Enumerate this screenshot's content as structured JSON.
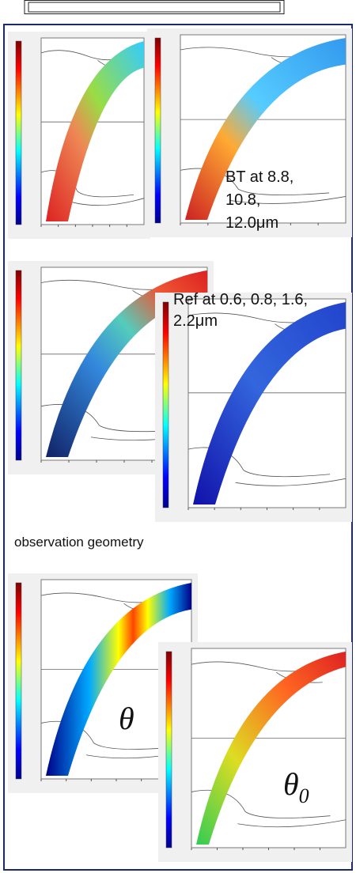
{
  "header": {
    "box": ""
  },
  "panels": {
    "brightness_temperature": {
      "label_lines": [
        "BT at 8.8,",
        "10.8,",
        "12.0μm"
      ]
    },
    "reflectance": {
      "label_lines": [
        "Ref at 0.6, 0.8, 1.6,",
        "2.2μm"
      ]
    },
    "geometry": {
      "title": "observation geometry",
      "sensor_angle": "θ",
      "solar_angle": "θ",
      "solar_angle_subscript": "0"
    }
  }
}
